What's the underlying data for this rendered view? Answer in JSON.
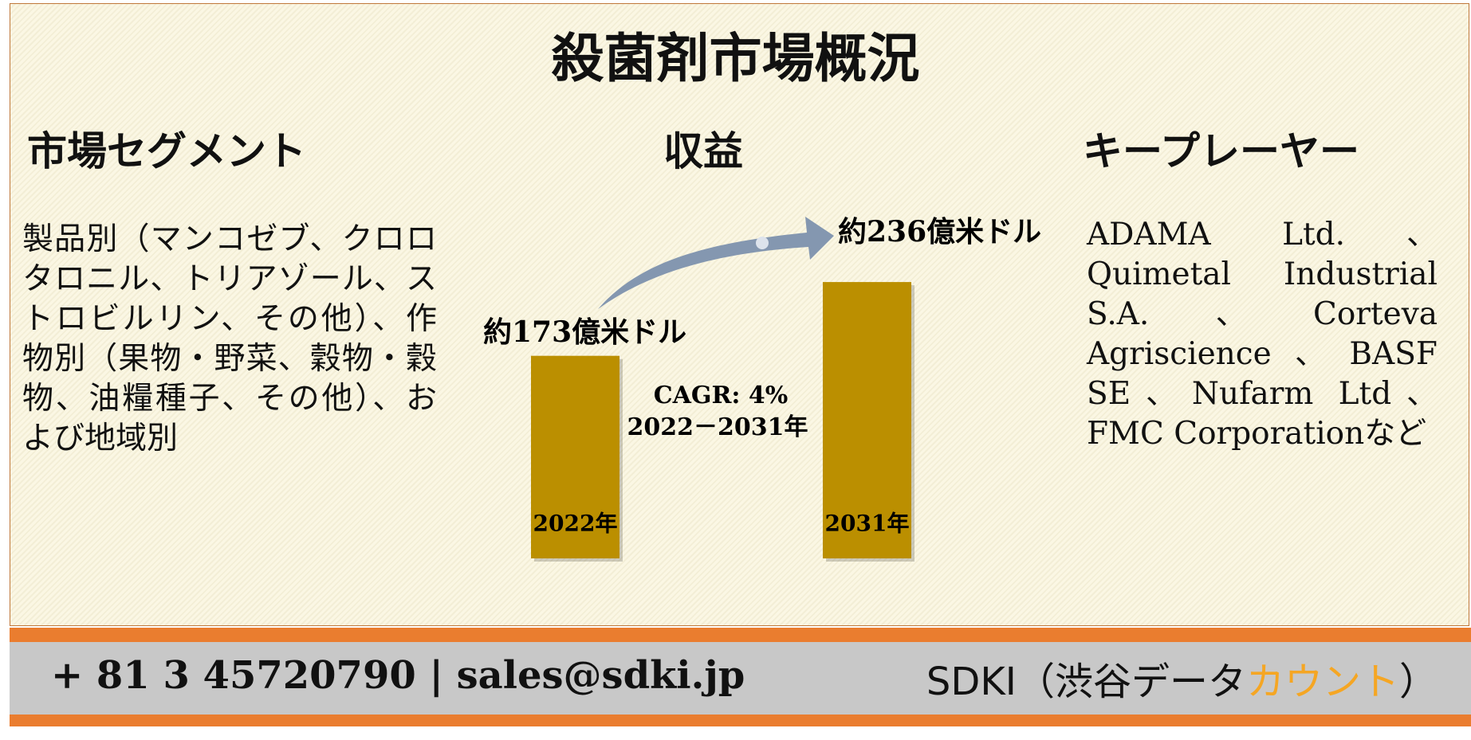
{
  "header": {
    "title": "殺菌剤市場概況"
  },
  "segments": {
    "heading": "市場セグメント",
    "body": "製品別（マンコゼブ、クロロタロニル、トリアゾール、ストロビルリン、その他）、作物別（果物・野菜、穀物・穀物、油糧種子、その他）、および地域別"
  },
  "revenue": {
    "heading": "収益",
    "categories": [
      "2022年",
      "2031年"
    ],
    "values": [
      173,
      236
    ],
    "value_labels": [
      "約173億米ドル",
      "約236億米ドル"
    ],
    "color": "#bb8f00",
    "cagr": "CAGR: 4%",
    "period": "2022－2031年"
  },
  "players": {
    "heading": "キープレーヤー",
    "body": "ADAMA Ltd.、Quimetal Industrial S.A.、Corteva Agriscience、BASF SE、Nufarm Ltd、FMC Corporationなど"
  },
  "footer": {
    "contact": "+ 81 3 45720790 | sales@sdki.jp",
    "brand": "SDKI（渋谷データ",
    "brand_highlight": "カウント",
    "brand_end": "）"
  }
}
